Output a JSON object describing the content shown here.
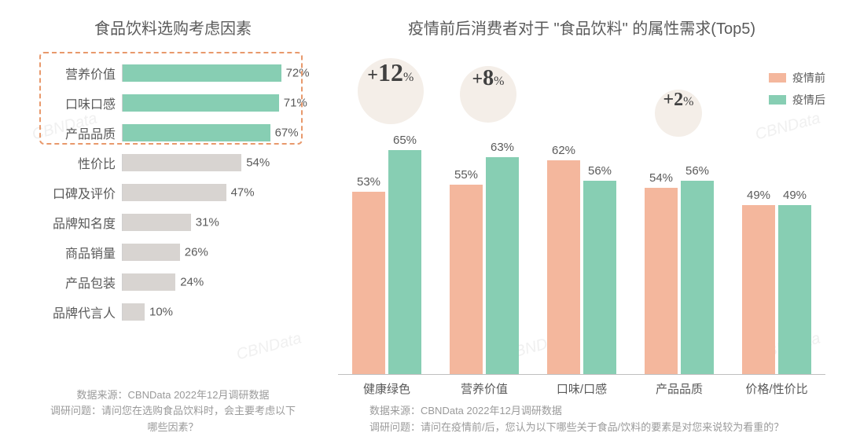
{
  "colors": {
    "bar_green": "#87ceb3",
    "bar_gray": "#d8d4d1",
    "bar_salmon": "#f4b79d",
    "bubble_bg": "#f4eee8",
    "highlight_border": "#e8996c",
    "text": "#5a5a5a",
    "foot": "#9a9a9a"
  },
  "watermark_text": "CBNData",
  "left_chart": {
    "title": "食品饮料选购考虑因素",
    "max_value": 80,
    "highlight_top_n": 3,
    "items": [
      {
        "label": "营养价值",
        "value": 72,
        "display": "72%",
        "highlighted": true
      },
      {
        "label": "口味口感",
        "value": 71,
        "display": "71%",
        "highlighted": true
      },
      {
        "label": "产品品质",
        "value": 67,
        "display": "67%",
        "highlighted": true
      },
      {
        "label": "性价比",
        "value": 54,
        "display": "54%",
        "highlighted": false
      },
      {
        "label": "口碑及评价",
        "value": 47,
        "display": "47%",
        "highlighted": false
      },
      {
        "label": "品牌知名度",
        "value": 31,
        "display": "31%",
        "highlighted": false
      },
      {
        "label": "商品销量",
        "value": 26,
        "display": "26%",
        "highlighted": false
      },
      {
        "label": "产品包装",
        "value": 24,
        "display": "24%",
        "highlighted": false
      },
      {
        "label": "品牌代言人",
        "value": 10,
        "display": "10%",
        "highlighted": false
      }
    ],
    "source": "数据来源：CBNData 2022年12月调研数据",
    "question": "调研问题：请问您在选购食品饮料时，会主要考虑以下哪些因素？"
  },
  "right_chart": {
    "title": "疫情前后消费者对于 \"食品饮料\" 的属性需求(Top5)",
    "ylim": [
      0,
      70
    ],
    "legend": [
      {
        "label": "疫情前",
        "color": "#f4b79d"
      },
      {
        "label": "疫情后",
        "color": "#87ceb3"
      }
    ],
    "bubbles": [
      {
        "num": "12",
        "size": 84,
        "fontsize": 32,
        "left_pct": 4,
        "top": 0
      },
      {
        "num": "8",
        "size": 72,
        "fontsize": 28,
        "left_pct": 25,
        "top": 10
      },
      {
        "num": "2",
        "size": 60,
        "fontsize": 24,
        "left_pct": 65,
        "top": 40
      }
    ],
    "groups": [
      {
        "label": "健康绿色",
        "before": 53,
        "after": 65
      },
      {
        "label": "营养价值",
        "before": 55,
        "after": 63
      },
      {
        "label": "口味/口感",
        "before": 62,
        "after": 56
      },
      {
        "label": "产品品质",
        "before": 54,
        "after": 56
      },
      {
        "label": "价格/性价比",
        "before": 49,
        "after": 49
      }
    ],
    "source": "数据来源：CBNData 2022年12月调研数据",
    "question": "调研问题：请问在疫情前/后，您认为以下哪些关于食品/饮料的要素是对您来说较为看重的？"
  }
}
